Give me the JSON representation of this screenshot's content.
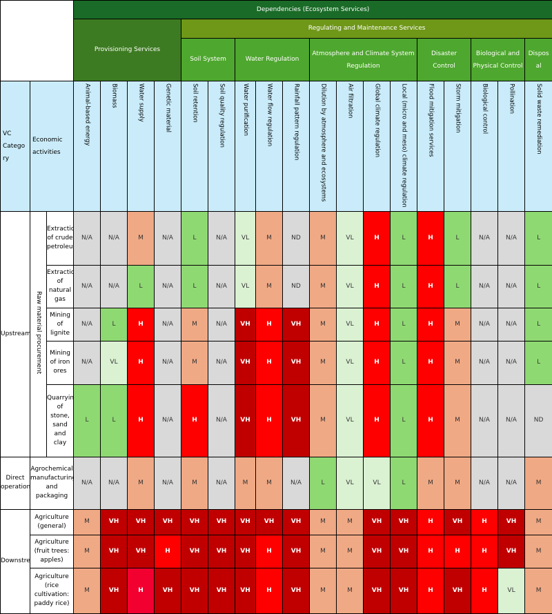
{
  "header": {
    "dependencies": "Dependencies (Ecosystem Services)",
    "provisioning": "Provisioning Services",
    "regulating": "Regulating and Maintenance Services",
    "groups": {
      "soil": "Soil System",
      "water": "Water Regulation",
      "atmosphere": "Atmosphere and Climate System Regulation",
      "disaster": "Disaster Control",
      "biological": "Biological and Physical Control",
      "disposal": "Dispos al"
    },
    "vc_category": "VC Catego ry",
    "economic_activities": "Economic activities"
  },
  "chart_data": {
    "type": "table",
    "columns": [
      "Animal-based energy",
      "Biomass",
      "Water supply",
      "Genetic material",
      "Soil retention",
      "Soil quality regulation",
      "Water purification",
      "Water flow regulation",
      "Rainfall pattern regulation",
      "Dilution by atmosphere and ecosystems",
      "Air filtration",
      "Global climate regulation",
      "Local (micro and meso) climate regulation",
      "Flood mitigation services",
      "Storm mitigation",
      "Biological control",
      "Pollination",
      "Solid waste remediation"
    ],
    "vc_categories": [
      {
        "label": "Upstream",
        "sub_label": "Raw material procurement"
      },
      {
        "label": "Direct operations"
      },
      {
        "label": "Downstream"
      }
    ],
    "rows": [
      {
        "category": 0,
        "activity": "Extraction of crude petroleum",
        "values": [
          "N/A",
          "N/A",
          "M",
          "N/A",
          "L",
          "N/A",
          "VL",
          "M",
          "ND",
          "M",
          "VL",
          "H",
          "L",
          "H",
          "L",
          "N/A",
          "N/A",
          "L"
        ]
      },
      {
        "category": 0,
        "activity": "Extraction of natural gas",
        "values": [
          "N/A",
          "N/A",
          "L",
          "N/A",
          "L",
          "N/A",
          "VL",
          "M",
          "ND",
          "M",
          "VL",
          "H",
          "L",
          "H",
          "L",
          "N/A",
          "N/A",
          "L"
        ]
      },
      {
        "category": 0,
        "activity": "Mining of lignite",
        "values": [
          "N/A",
          "L",
          "H",
          "N/A",
          "M",
          "N/A",
          "VH",
          "H",
          "VH",
          "M",
          "VL",
          "H",
          "L",
          "H",
          "M",
          "N/A",
          "N/A",
          "L"
        ]
      },
      {
        "category": 0,
        "activity": "Mining of iron ores",
        "values": [
          "N/A",
          "VL",
          "H",
          "N/A",
          "M",
          "N/A",
          "VH",
          "H",
          "VH",
          "M",
          "VL",
          "H",
          "L",
          "H",
          "M",
          "N/A",
          "N/A",
          "L"
        ]
      },
      {
        "category": 0,
        "activity": "Quarrying of stone, sand and clay",
        "values": [
          "L",
          "L",
          "H",
          "N/A",
          "H",
          "N/A",
          "VH",
          "H",
          "VH",
          "M",
          "VL",
          "H",
          "L",
          "H",
          "M",
          "N/A",
          "N/A",
          "ND"
        ]
      },
      {
        "category": 1,
        "activity": "Agrochemical manufacturing and packaging",
        "values": [
          "N/A",
          "N/A",
          "M",
          "N/A",
          "M",
          "N/A",
          "M",
          "M",
          "N/A",
          "L",
          "VL",
          "VL",
          "L",
          "M",
          "M",
          "N/A",
          "N/A",
          "M"
        ]
      },
      {
        "category": 2,
        "activity": "Agriculture (general)",
        "values": [
          "M",
          "VH",
          "VH",
          "VH",
          "VH",
          "VH",
          "VH",
          "VH",
          "VH",
          "M",
          "M",
          "VH",
          "VH",
          "H",
          "VH",
          "H",
          "VH",
          "M"
        ]
      },
      {
        "category": 2,
        "activity": "Agriculture (fruit trees: apples)",
        "values": [
          "M",
          "VH",
          "VH",
          "H",
          "VH",
          "VH",
          "VH",
          "H",
          "VH",
          "M",
          "M",
          "VH",
          "VH",
          "H",
          "H",
          "H",
          "VH",
          "M"
        ]
      },
      {
        "category": 2,
        "activity": "Agriculture (rice cultivation: paddy rice)",
        "values": [
          "M",
          "VH",
          "H",
          "VH",
          "VH",
          "VH",
          "VH",
          "H",
          "VH",
          "M",
          "M",
          "VH",
          "VH",
          "H",
          "VH",
          "H",
          "VL",
          "M"
        ]
      }
    ],
    "level_colors": {
      "N/A": "#d9d9d9",
      "ND": "#d9d9d9",
      "VL": "#daf1d2",
      "L": "#8fd973",
      "M": "#f0a985",
      "H": "#ff0000",
      "VH": "#c00000"
    },
    "level_text_colors": {
      "N/A": "#333333",
      "ND": "#333333",
      "VL": "#333333",
      "L": "#333333",
      "M": "#333333",
      "H": "#ffffff",
      "VH": "#ffffff"
    },
    "cell_color_overrides": [
      {
        "row": 8,
        "col": 2,
        "color": "#f20030"
      }
    ]
  }
}
